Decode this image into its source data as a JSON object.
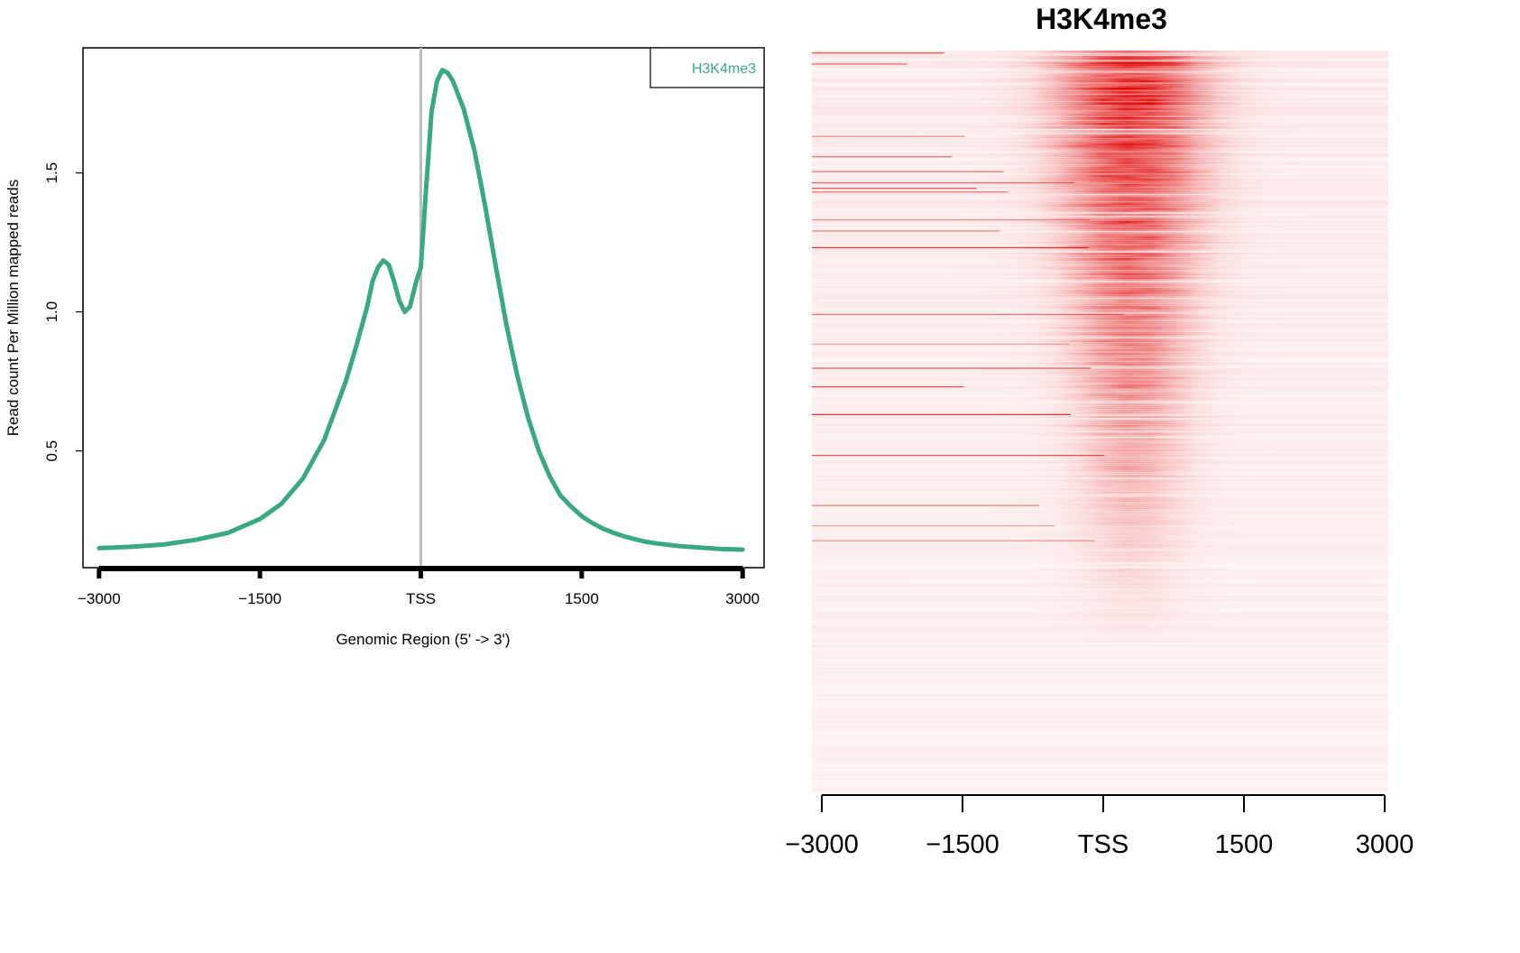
{
  "chart_data": [
    {
      "type": "line",
      "title": "",
      "xlabel": "Genomic Region (5' -> 3')",
      "ylabel": "Read count Per Million mapped reads",
      "xlim": [
        -3150,
        3200
      ],
      "ylim": [
        0.08,
        1.95
      ],
      "x_ticks": [
        -3000,
        -1500,
        0,
        1500,
        3000
      ],
      "x_tick_labels": [
        "-3000",
        "-1500",
        "TSS",
        "1500",
        "3000"
      ],
      "y_ticks": [
        0.5,
        1.0,
        1.5
      ],
      "y_tick_labels": [
        "0.5",
        "1.0",
        "1.5"
      ],
      "tss_marker_x": 0,
      "legend": "top-right",
      "series": [
        {
          "name": "H3K4me3",
          "color": "#3aa882",
          "x": [
            -3000,
            -2700,
            -2400,
            -2100,
            -1800,
            -1500,
            -1300,
            -1100,
            -900,
            -700,
            -600,
            -500,
            -450,
            -400,
            -350,
            -300,
            -250,
            -200,
            -150,
            -100,
            -50,
            0,
            50,
            100,
            150,
            200,
            250,
            300,
            350,
            400,
            500,
            600,
            700,
            800,
            900,
            1000,
            1100,
            1200,
            1300,
            1400,
            1500,
            1600,
            1700,
            1800,
            1900,
            2000,
            2100,
            2200,
            2400,
            2600,
            2800,
            3000
          ],
          "y": [
            0.15,
            0.155,
            0.163,
            0.18,
            0.205,
            0.255,
            0.31,
            0.4,
            0.54,
            0.75,
            0.88,
            1.02,
            1.11,
            1.16,
            1.185,
            1.17,
            1.11,
            1.04,
            1.0,
            1.02,
            1.1,
            1.16,
            1.45,
            1.72,
            1.83,
            1.87,
            1.86,
            1.83,
            1.78,
            1.73,
            1.58,
            1.38,
            1.16,
            0.95,
            0.77,
            0.62,
            0.5,
            0.41,
            0.34,
            0.3,
            0.265,
            0.24,
            0.22,
            0.205,
            0.192,
            0.182,
            0.173,
            0.167,
            0.158,
            0.152,
            0.147,
            0.145
          ]
        }
      ]
    },
    {
      "type": "heatmap",
      "title": "H3K4me3",
      "xlabel": "",
      "ylabel": "",
      "xlim": [
        -3000,
        3000
      ],
      "x_ticks": [
        -3000,
        -1500,
        0,
        1500,
        3000
      ],
      "x_tick_labels": [
        "-3000",
        "-1500",
        "TSS",
        "1500",
        "3000"
      ],
      "low_color": "#ffffff",
      "high_color": "#e00000",
      "signal_center_x": 300,
      "row_count": 400,
      "rows_sorted": "descending signal"
    }
  ]
}
